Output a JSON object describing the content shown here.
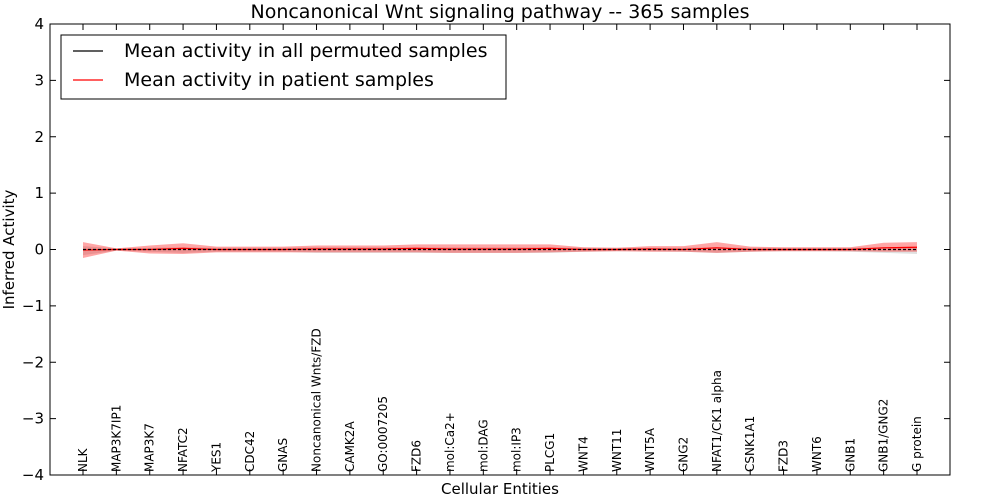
{
  "chart_data": {
    "type": "line",
    "title": "Noncanonical Wnt signaling pathway -- 365 samples",
    "xlabel": "Cellular Entities",
    "ylabel": "Inferred Activity",
    "ylim": [
      -4,
      4
    ],
    "yticks": [
      4,
      3,
      2,
      1,
      0,
      -1,
      -2,
      -3,
      -4
    ],
    "ytick_labels": [
      "4",
      "3",
      "2",
      "1",
      "0",
      "−1",
      "−2",
      "−3",
      "−4"
    ],
    "legend_position": "top-left",
    "categories": [
      "NLK",
      "MAP3K7IP1",
      "MAP3K7",
      "NFATC2",
      "YES1",
      "CDC42",
      "GNAS",
      "Noncanonical Wnts/FZD",
      "CAMK2A",
      "GO:0007205",
      "FZD6",
      "mol:Ca2+",
      "mol:DAG",
      "mol:IP3",
      "PLCG1",
      "WNT4",
      "WNT11",
      "WNT5A",
      "GNG2",
      "NFAT1/CK1 alpha",
      "CSNK1A1",
      "FZD3",
      "WNT6",
      "GNB1",
      "GNB1/GNG2",
      "G protein"
    ],
    "series": [
      {
        "name": "Mean activity in all permuted samples",
        "color": "#000000",
        "values": [
          0.0,
          0.0,
          0.0,
          0.0,
          0.0,
          0.0,
          0.0,
          0.0,
          0.0,
          0.0,
          0.0,
          0.0,
          0.0,
          0.0,
          0.0,
          0.0,
          0.0,
          0.0,
          0.0,
          0.0,
          0.0,
          0.0,
          0.0,
          0.0,
          0.0,
          0.0
        ],
        "upper": [
          0.06,
          0.02,
          0.03,
          0.04,
          0.03,
          0.03,
          0.03,
          0.04,
          0.04,
          0.04,
          0.04,
          0.04,
          0.04,
          0.04,
          0.04,
          0.03,
          0.03,
          0.03,
          0.03,
          0.04,
          0.03,
          0.03,
          0.03,
          0.03,
          0.04,
          0.05
        ],
        "lower": [
          -0.1,
          -0.02,
          -0.04,
          -0.06,
          -0.04,
          -0.04,
          -0.04,
          -0.06,
          -0.06,
          -0.06,
          -0.06,
          -0.06,
          -0.06,
          -0.06,
          -0.06,
          -0.04,
          -0.03,
          -0.03,
          -0.04,
          -0.06,
          -0.04,
          -0.03,
          -0.03,
          -0.04,
          -0.06,
          -0.08
        ]
      },
      {
        "name": "Mean activity in patient samples",
        "color": "#ff0000",
        "values": [
          -0.01,
          0.0,
          0.0,
          0.02,
          0.0,
          0.0,
          0.0,
          0.01,
          0.01,
          0.01,
          0.02,
          0.01,
          0.01,
          0.01,
          0.02,
          0.0,
          0.0,
          0.01,
          0.0,
          0.03,
          0.0,
          0.0,
          0.0,
          0.0,
          0.03,
          0.04
        ],
        "upper": [
          0.13,
          0.02,
          0.07,
          0.11,
          0.05,
          0.05,
          0.05,
          0.07,
          0.07,
          0.07,
          0.09,
          0.09,
          0.09,
          0.09,
          0.09,
          0.04,
          0.03,
          0.06,
          0.06,
          0.13,
          0.05,
          0.04,
          0.04,
          0.04,
          0.12,
          0.13
        ],
        "lower": [
          -0.15,
          -0.02,
          -0.07,
          -0.08,
          -0.05,
          -0.05,
          -0.05,
          -0.05,
          -0.05,
          -0.05,
          -0.05,
          -0.06,
          -0.06,
          -0.06,
          -0.05,
          -0.04,
          -0.03,
          -0.04,
          -0.04,
          -0.06,
          -0.04,
          -0.03,
          -0.03,
          -0.03,
          -0.04,
          -0.04
        ]
      }
    ]
  }
}
